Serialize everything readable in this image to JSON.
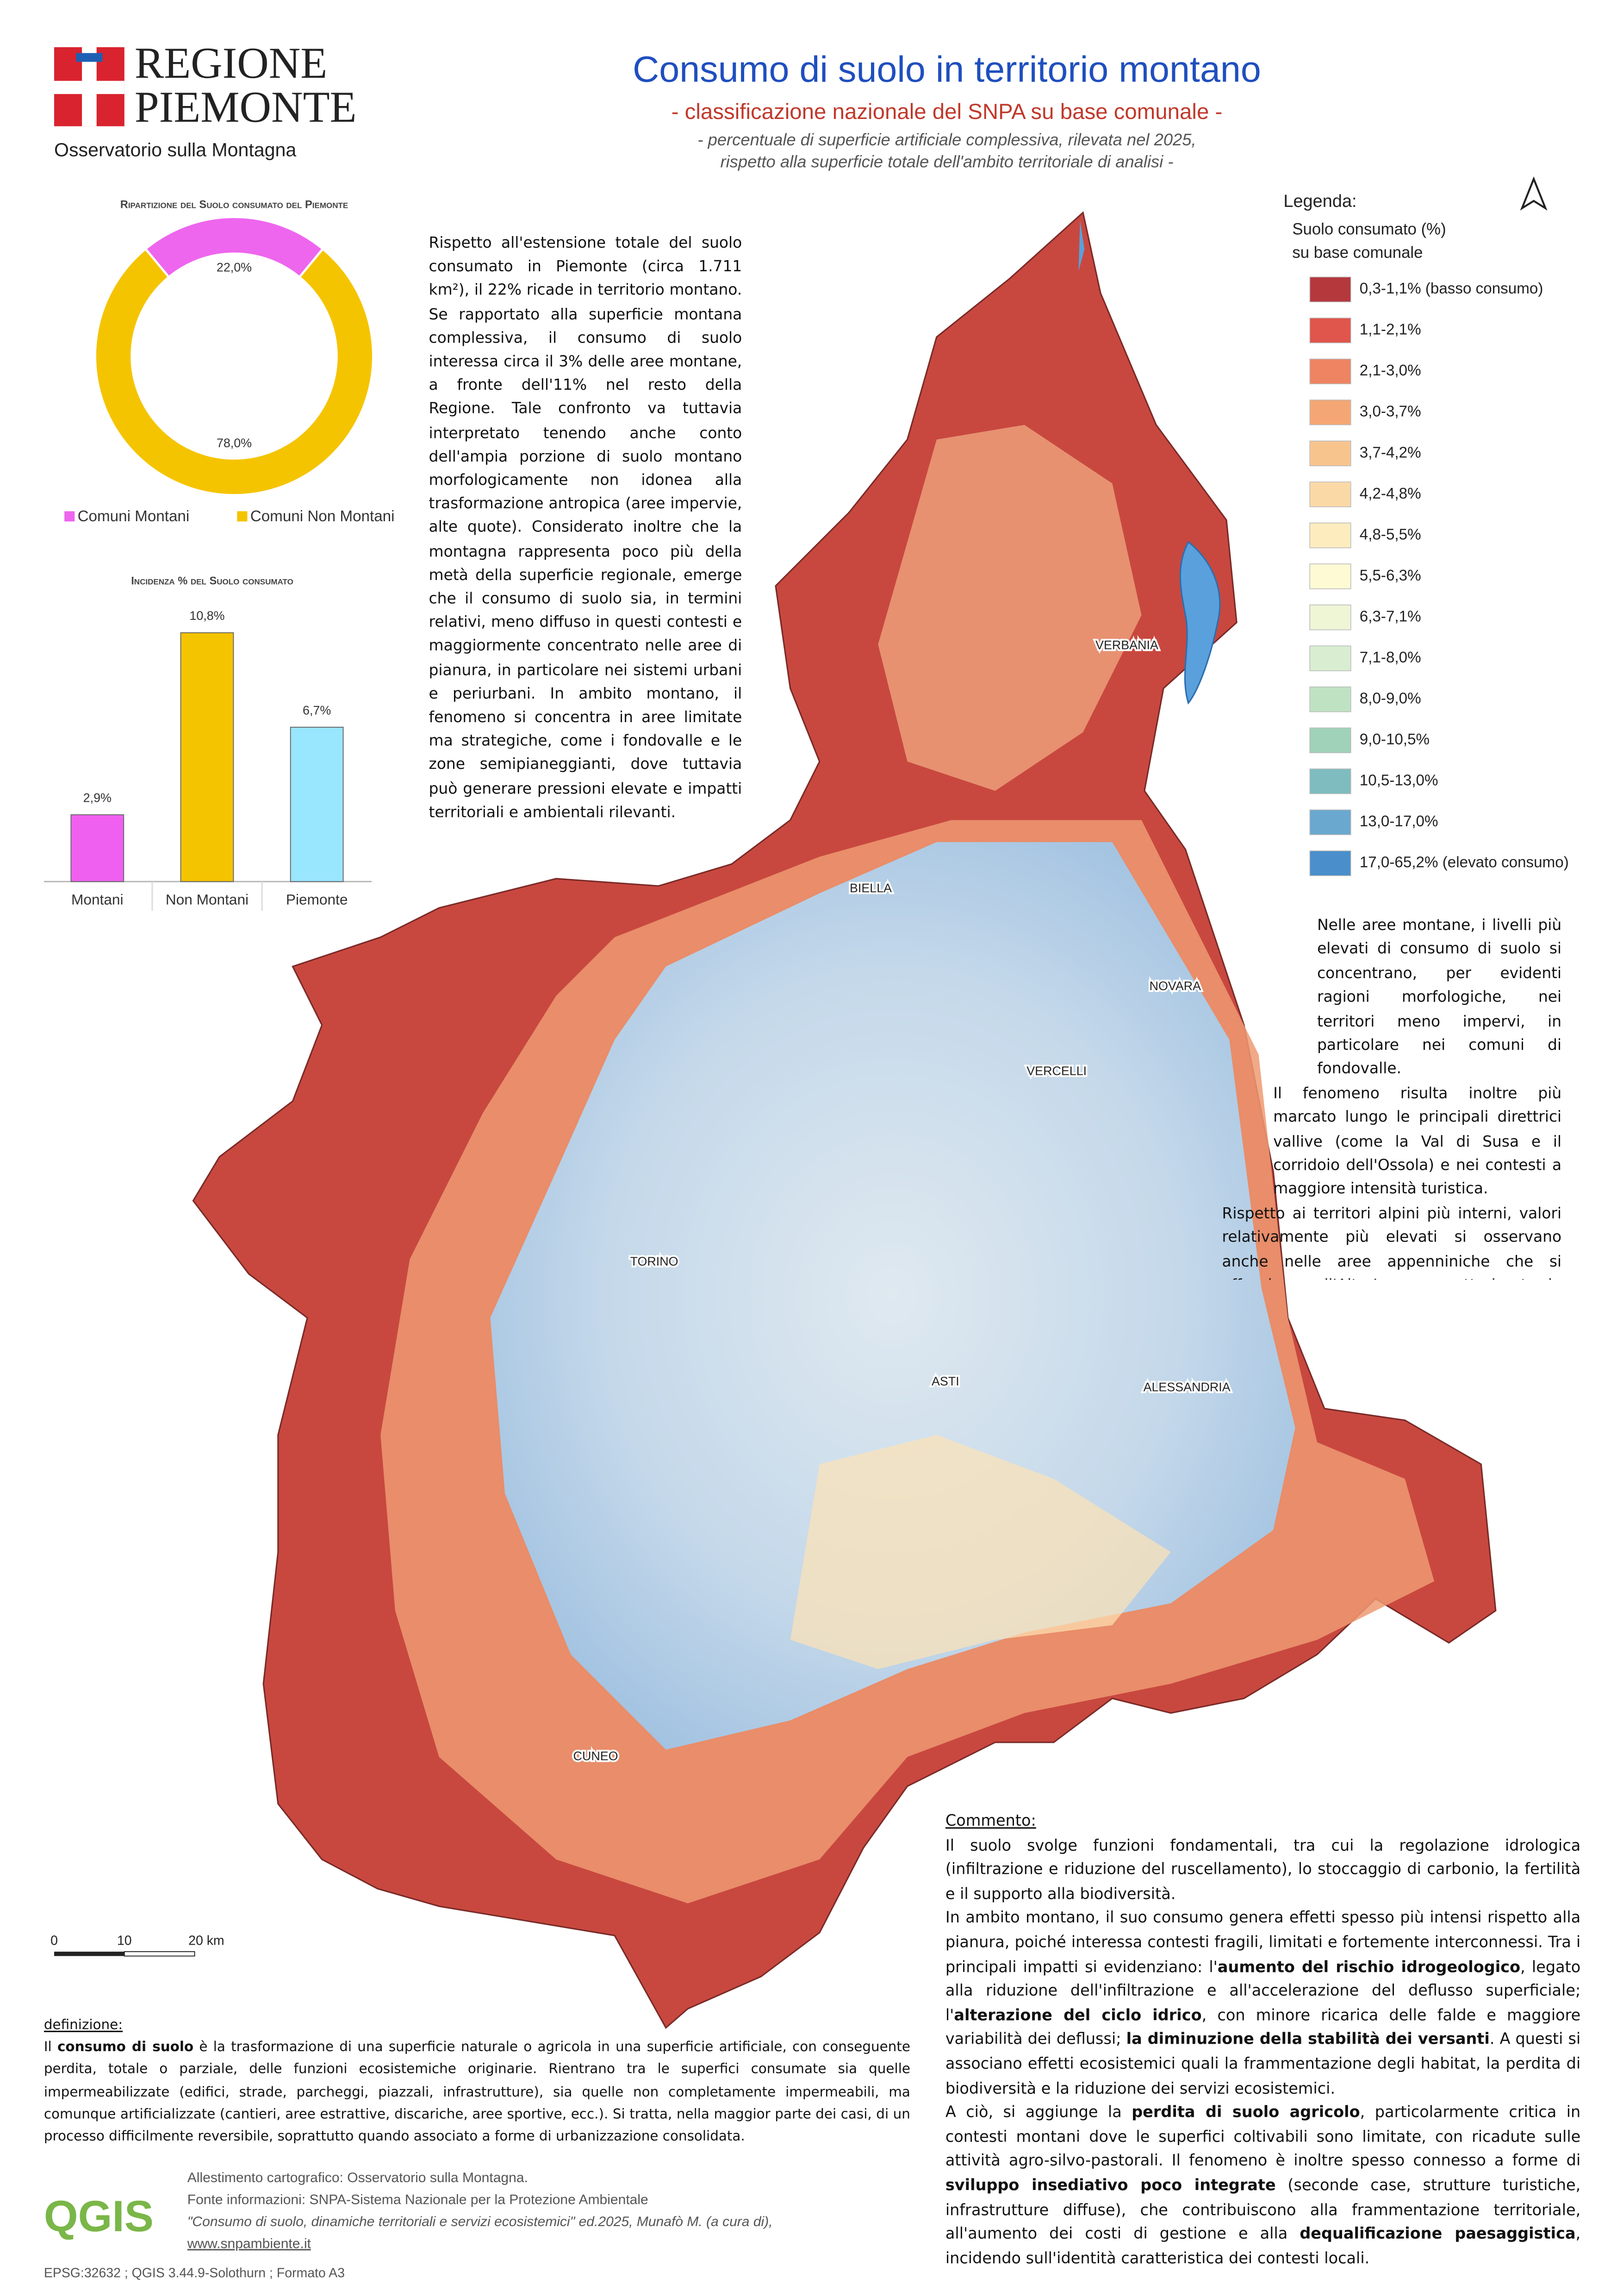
{
  "header": {
    "logo_line1": "REGIONE",
    "logo_line2": "PIEMONTE",
    "office": "Osservatorio sulla Montagna",
    "title": "Consumo di suolo in territorio montano",
    "subtitle": "- classificazione nazionale del SNPA su base comunale -",
    "notes": [
      "- percentuale di superficie artificiale complessiva, rilevata nel 2025,",
      "rispetto alla superficie totale dell'ambito territoriale di analisi -"
    ]
  },
  "chart_data": [
    {
      "type": "pie",
      "title": "Ripartizione del Suolo consumato del Piemonte",
      "categories": [
        "Comuni Montani",
        "Comuni Non Montani"
      ],
      "values": [
        22.0,
        78.0
      ],
      "value_labels": [
        "22,0%",
        "78,0%"
      ],
      "colors": [
        "#ee66ee",
        "#f5c400"
      ]
    },
    {
      "type": "bar",
      "title": "Incidenza % del Suolo consumato",
      "categories": [
        "Montani",
        "Non Montani",
        "Piemonte"
      ],
      "values": [
        2.9,
        10.8,
        6.7
      ],
      "value_labels": [
        "2,9%",
        "10,8%",
        "6,7%"
      ],
      "colors": [
        "#f060f0",
        "#f5c400",
        "#99e6ff"
      ]
    }
  ],
  "intro_text": "Rispetto all'estensione totale del suolo consumato in Piemonte (circa 1.711 km²), il 22% ricade in territorio montano. Se rapportato alla superficie montana complessiva, il consumo di suolo interessa circa il 3% delle aree montane, a fronte dell'11% nel resto della Regione. Tale confronto va tuttavia interpretato tenendo anche conto dell'ampia porzione di suolo montano morfologicamente non idonea alla trasformazione antropica (aree impervie, alte quote). Considerato inoltre che la montagna rappresenta poco più della metà della superficie regionale, emerge che il consumo di suolo sia, in termini relativi, meno diffuso in questi contesti e maggiormente concentrato nelle aree di pianura, in particolare nei sistemi urbani e periurbani. In ambito montano, il fenomeno si concentra in aree limitate ma strategiche, come i fondovalle e le zone semipianeggianti, dove tuttavia può generare pressioni elevate e impatti territoriali e ambientali rilevanti.",
  "legend": {
    "title": "Legenda:",
    "subtitle": [
      "Suolo consumato (%)",
      "su base comunale"
    ],
    "items": [
      {
        "label": "0,3-1,1% (basso consumo)",
        "color": "#b5383d"
      },
      {
        "label": "1,1-2,1%",
        "color": "#e0554c"
      },
      {
        "label": "2,1-3,0%",
        "color": "#ee8462"
      },
      {
        "label": "3,0-3,7%",
        "color": "#f4a774"
      },
      {
        "label": "3,7-4,2%",
        "color": "#f8c48e"
      },
      {
        "label": "4,2-4,8%",
        "color": "#fbd9a6"
      },
      {
        "label": "4,8-5,5%",
        "color": "#fdedbe"
      },
      {
        "label": "5,5-6,3%",
        "color": "#fefad4"
      },
      {
        "label": "6,3-7,1%",
        "color": "#eef6d6"
      },
      {
        "label": "7,1-8,0%",
        "color": "#d9eed1"
      },
      {
        "label": "8,0-9,0%",
        "color": "#bfe3c2"
      },
      {
        "label": "9,0-10,5%",
        "color": "#9fd2b8"
      },
      {
        "label": "10,5-13,0%",
        "color": "#7ebcc0"
      },
      {
        "label": "13,0-17,0%",
        "color": "#6aa8cf"
      },
      {
        "label": "17,0-65,2% (elevato consumo)",
        "color": "#4a8fcb"
      }
    ]
  },
  "right_text": [
    "Nelle aree montane, i livelli più elevati di consumo di suolo si concentrano, per evidenti ragioni morfologiche, nei territori meno impervi, in particolare nei comuni di fondovalle.",
    "Il fenomeno risulta inoltre più marcato lungo le principali direttrici vallive (come la Val di Susa e il corridoio dell'Ossola) e nei contesti a maggiore intensità turistica.",
    "Rispetto ai territori alpini più interni, valori relativamente più elevati si osservano anche nelle aree appenniniche che si affacciano sull'Alta Langa, caratterizzate da una maggiore accessibilità e da condizioni morfologiche più favorevoli alla trasformazione del suolo."
  ],
  "map": {
    "cities": [
      "VERBANIA",
      "BIELLA",
      "NOVARA",
      "VERCELLI",
      "TORINO",
      "ASTI",
      "ALESSANDRIA",
      "CUNEO"
    ],
    "scale_bar": [
      "0",
      "10",
      "20 km"
    ]
  },
  "comment": {
    "heading": "Commento:",
    "paragraphs": [
      [
        "Il suolo svolge funzioni fondamentali, tra cui la regolazione idrologica (infiltrazione e riduzione del ruscellamento), lo stoccaggio di carbonio, la fertilità e il supporto alla biodiversità."
      ],
      [
        "In ambito montano, il suo consumo genera effetti spesso più intensi rispetto alla pianura, poiché interessa contesti fragili, limitati e fortemente interconnessi. Tra i principali impatti si evidenziano: l'",
        "aumento del rischio idrogeologico",
        ", legato alla riduzione dell'infiltrazione e all'accelerazione del deflusso superficiale; l'",
        "alterazione del ciclo idrico",
        ", con minore ricarica delle falde e maggiore variabilità dei deflussi; ",
        "la diminuzione della stabilità dei versanti",
        ". A questi si associano effetti ecosistemici quali la frammentazione degli habitat, la perdita di biodiversità e la riduzione dei servizi ecosistemici."
      ],
      [
        "A ciò, si aggiunge la ",
        "perdita di suolo agricolo",
        ", particolarmente critica in contesti montani dove le superfici coltivabili sono limitate, con ricadute sulle attività agro-silvo-pastorali. Il fenomeno è inoltre spesso connesso a forme di ",
        "sviluppo insediativo poco integrate",
        " (seconde case, strutture turistiche, infrastrutture diffuse), che contribuiscono alla frammentazione territoriale, all'aumento dei costi di gestione e alla ",
        "dequalificazione paesaggistica",
        ", incidendo sull'identità caratteristica dei contesti locali."
      ]
    ]
  },
  "definition": {
    "heading": "definizione:",
    "text": [
      "Il ",
      "consumo di suolo",
      " è la trasformazione di una superficie naturale o agricola in una superficie artificiale, con conseguente perdita, totale o parziale, delle funzioni ecosistemiche originarie. Rientrano tra le superfici consumate sia quelle impermeabilizzate (edifici, strade, parcheggi, piazzali, infrastrutture), sia quelle non completamente impermeabili, ma comunque artificializzate (cantieri, aree estrattive, discariche, aree sportive, ecc.). Si tratta, nella maggior parte dei casi, di un processo difficilmente reversibile, soprattutto quando associato a forme di urbanizzazione consolidata."
    ]
  },
  "credits": {
    "logo": "QGIS",
    "lines": [
      "Allestimento cartografico: Osservatorio sulla Montagna.",
      "Fonte informazioni: SNPA-Sistema Nazionale per la Protezione Ambientale",
      "\"Consumo di suolo, dinamiche territoriali e servizi ecosistemici\" ed.2025, Munafò M. (a cura di),",
      "www.snpambiente.it"
    ],
    "footer": "EPSG:32632 ; QGIS 3.44.9-Solothurn ; Formato A3"
  }
}
